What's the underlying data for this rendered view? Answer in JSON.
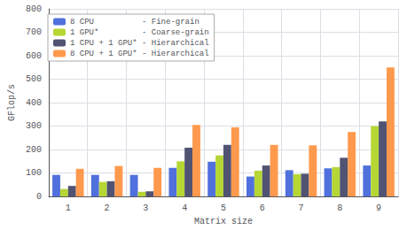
{
  "chart_data": {
    "type": "bar",
    "categories": [
      "1",
      "2",
      "3",
      "4",
      "5",
      "6",
      "7",
      "8",
      "9"
    ],
    "series": [
      {
        "name": "8 CPU          - Fine-grain",
        "values": [
          92,
          92,
          92,
          122,
          148,
          85,
          112,
          120,
          132
        ]
      },
      {
        "name": "1 GPU*         - Coarse-grain",
        "values": [
          32,
          62,
          20,
          150,
          175,
          110,
          95,
          125,
          300
        ]
      },
      {
        "name": "1 CPU + 1 GPU* - Hierarchical",
        "values": [
          45,
          65,
          22,
          208,
          220,
          132,
          97,
          165,
          320
        ]
      },
      {
        "name": "8 CPU + 1 GPU* - Hierarchical",
        "values": [
          118,
          130,
          122,
          305,
          295,
          220,
          218,
          275,
          550
        ]
      }
    ],
    "xlabel": "Matrix size",
    "ylabel": "GFlop/s",
    "ylim": [
      0,
      800
    ],
    "yticks": [
      0,
      100,
      200,
      300,
      400,
      500,
      600,
      700,
      800
    ],
    "grid": true,
    "legend": "upper left"
  }
}
